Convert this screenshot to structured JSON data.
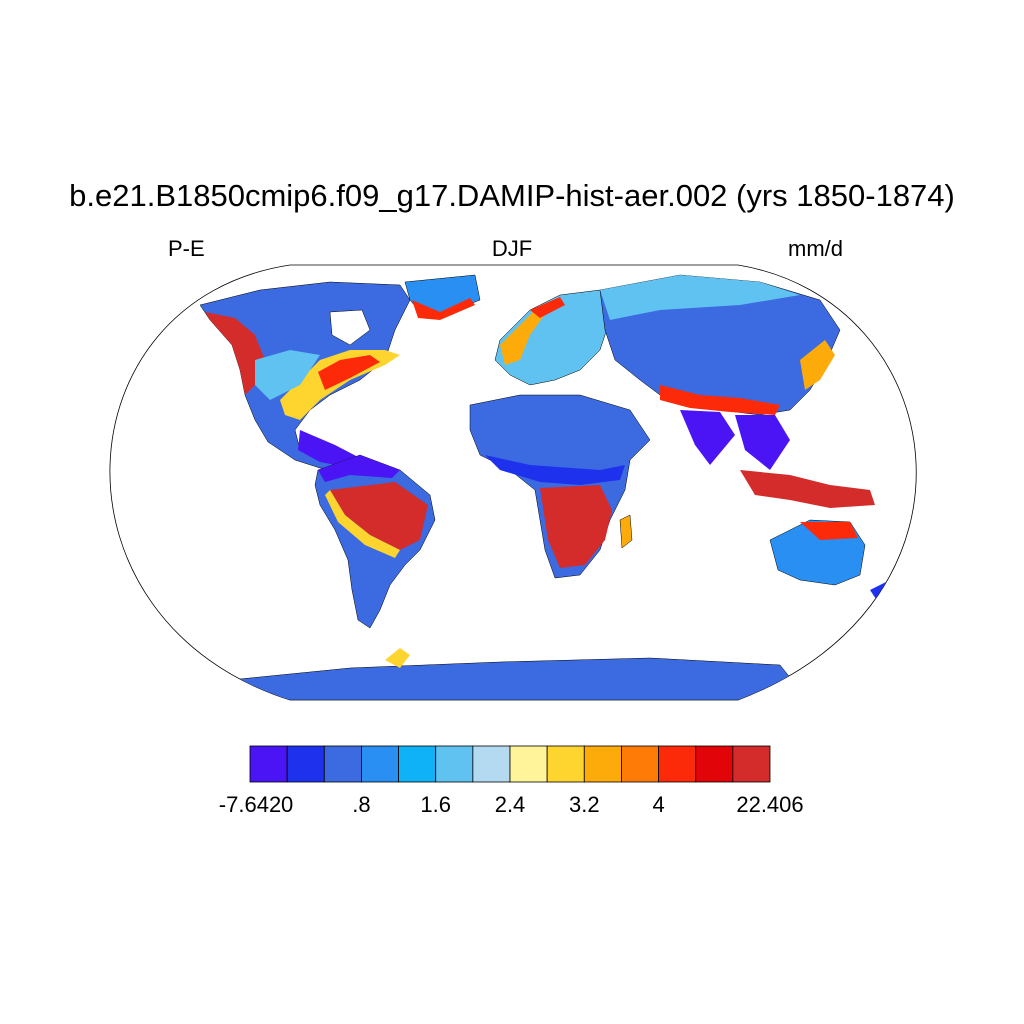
{
  "title": "b.e21.B1850cmip6.f09_g17.DAMIP-hist-aer.002 (yrs 1850-1874)",
  "subtitle_left": "P-E",
  "subtitle_center": "DJF",
  "subtitle_right": "mm/d",
  "colorbar": {
    "colors": [
      "#4b14f4",
      "#1e32ee",
      "#3c6ae0",
      "#2a8ff2",
      "#0fb1f7",
      "#5fc2f0",
      "#b3daf1",
      "#fff49a",
      "#fed52f",
      "#fdab0b",
      "#fe7b07",
      "#fd2a0a",
      "#e10509",
      "#d32c2b"
    ],
    "labels": [
      "-7.642",
      "0",
      ".8",
      "1.6",
      "2.4",
      "3.2",
      "4",
      "22.406"
    ]
  }
}
